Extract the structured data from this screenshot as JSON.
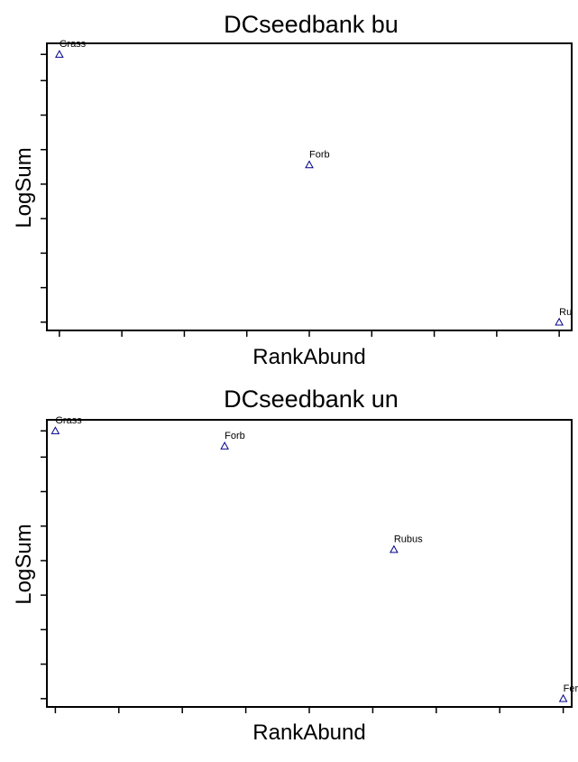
{
  "chart_data": [
    {
      "type": "scatter",
      "title": "DCseedbank bu",
      "xlabel": "RankAbund",
      "ylabel": "LogSum",
      "marker": "triangle-open",
      "marker_color": "#00008b",
      "grid": false,
      "xlim": [
        0.95,
        3.05
      ],
      "ylim": [
        0.0,
        1.04
      ],
      "xticks": [
        1,
        1.25,
        1.5,
        1.75,
        2,
        2.25,
        2.5,
        2.75,
        3
      ],
      "yticks": [
        0.03,
        0.155,
        0.28,
        0.405,
        0.53,
        0.655,
        0.78,
        0.905,
        1.0
      ],
      "points": [
        {
          "x": 1,
          "y": 1.0,
          "label": "Grass"
        },
        {
          "x": 2,
          "y": 0.6,
          "label": "Forb"
        },
        {
          "x": 3,
          "y": 0.03,
          "label": "Ru"
        }
      ]
    },
    {
      "type": "scatter",
      "title": "DCseedbank un",
      "xlabel": "RankAbund",
      "ylabel": "LogSum",
      "marker": "triangle-open",
      "marker_color": "#00008b",
      "grid": false,
      "xlim": [
        0.95,
        4.05
      ],
      "ylim": [
        0.0,
        1.04
      ],
      "xticks": [
        1,
        1.375,
        1.75,
        2.125,
        2.5,
        2.875,
        3.25,
        3.625,
        4
      ],
      "yticks": [
        0.03,
        0.155,
        0.28,
        0.405,
        0.53,
        0.655,
        0.78,
        0.905,
        1.0
      ],
      "points": [
        {
          "x": 1,
          "y": 1.0,
          "label": "Grass"
        },
        {
          "x": 2,
          "y": 0.945,
          "label": "Forb"
        },
        {
          "x": 3,
          "y": 0.57,
          "label": "Rubus"
        },
        {
          "x": 4,
          "y": 0.03,
          "label": "Fer"
        }
      ]
    }
  ]
}
